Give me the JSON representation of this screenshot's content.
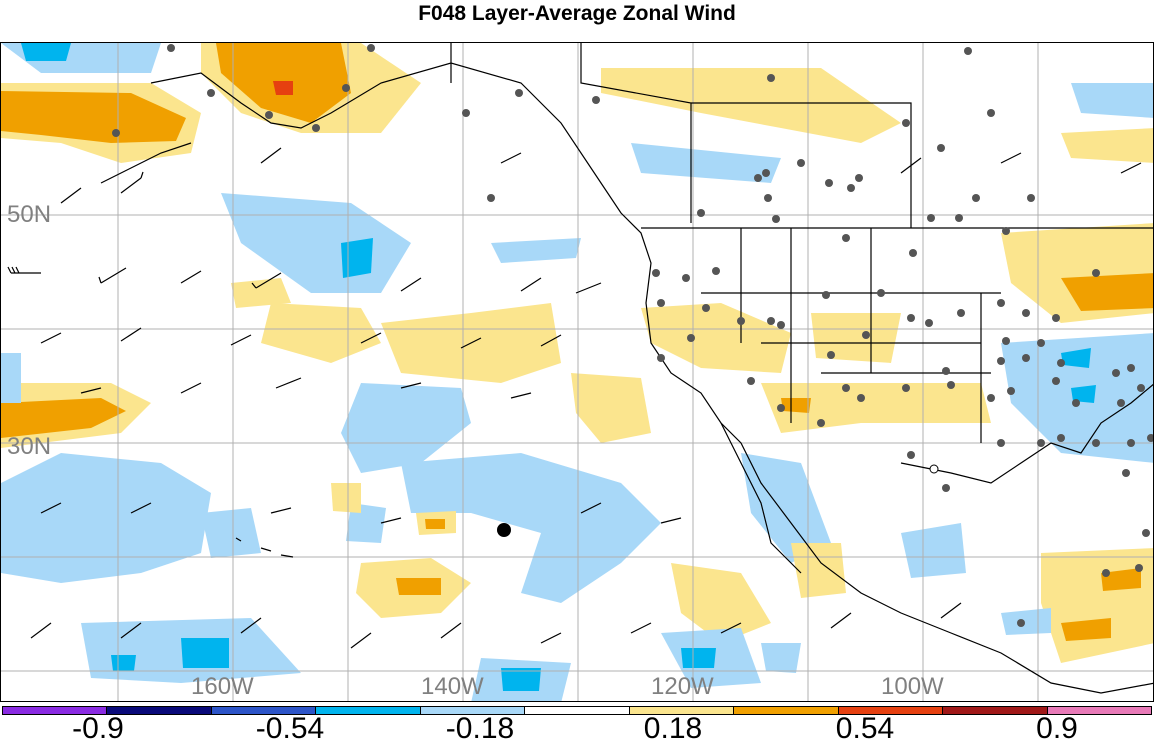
{
  "title": "F048 Layer-Average Zonal Wind",
  "lat_labels": [
    "50N",
    "30N"
  ],
  "lon_labels": [
    "160W",
    "140W",
    "120W",
    "100W"
  ],
  "colorbar": {
    "labels": [
      "-0.9",
      "-0.54",
      "-0.18",
      "0.18",
      "0.54",
      "0.9"
    ],
    "colors": [
      "#8a2be2",
      "#0a0a7a",
      "#2c54c8",
      "#00b4ee",
      "#a8d8f8",
      "#ffffff",
      "#fbe58e",
      "#f0a000",
      "#e64010",
      "#a01818",
      "#e87ab8"
    ]
  },
  "map_colors": {
    "land_outline": "#000000",
    "grid": "#b0b0b0",
    "station_dot": "#555555",
    "light_blue": "#a8d8f8",
    "mid_blue": "#00b4ee",
    "light_yellow": "#fbe58e",
    "orange": "#f0a000",
    "red": "#e64010"
  }
}
